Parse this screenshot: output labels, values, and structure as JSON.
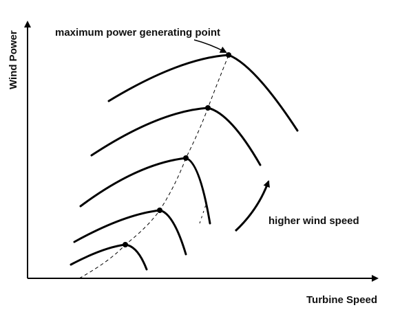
{
  "axes": {
    "x_label": "Turbine Speed",
    "y_label": "Wind Power"
  },
  "annotations": {
    "mpp": "maximum power generating point",
    "wind": "higher wind speed"
  }
}
